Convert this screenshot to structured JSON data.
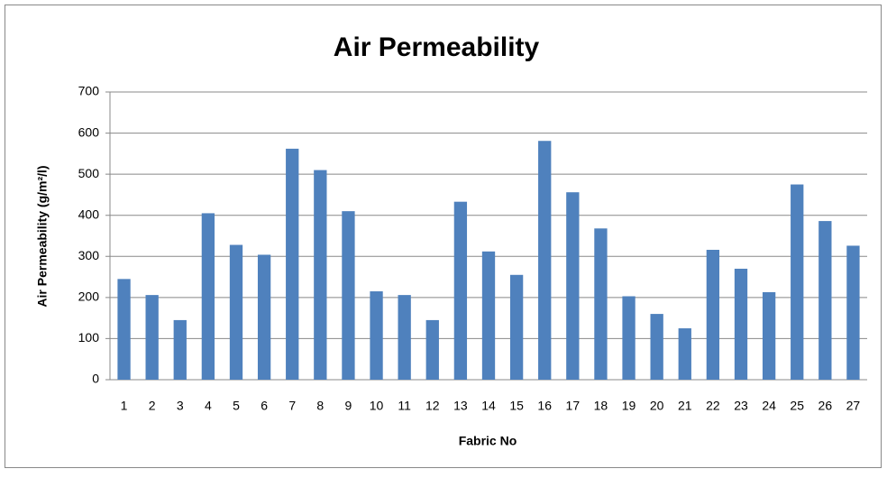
{
  "chart_data": {
    "type": "bar",
    "title": "Air Permeability",
    "x_label": "Fabric No",
    "y_label": "Air Permeability (g/m²/l)",
    "categories": [
      "1",
      "2",
      "3",
      "4",
      "5",
      "6",
      "7",
      "8",
      "9",
      "10",
      "11",
      "12",
      "13",
      "14",
      "15",
      "16",
      "17",
      "18",
      "19",
      "20",
      "21",
      "22",
      "23",
      "24",
      "25",
      "26",
      "27"
    ],
    "values": [
      245,
      206,
      145,
      405,
      328,
      304,
      562,
      510,
      410,
      215,
      206,
      145,
      433,
      312,
      255,
      581,
      456,
      368,
      203,
      160,
      125,
      316,
      270,
      213,
      475,
      386,
      326
    ],
    "color": "#4f81bd",
    "ylim": [
      0,
      700
    ],
    "yticks": [
      0,
      100,
      200,
      300,
      400,
      500,
      600,
      700
    ],
    "grid": true
  }
}
